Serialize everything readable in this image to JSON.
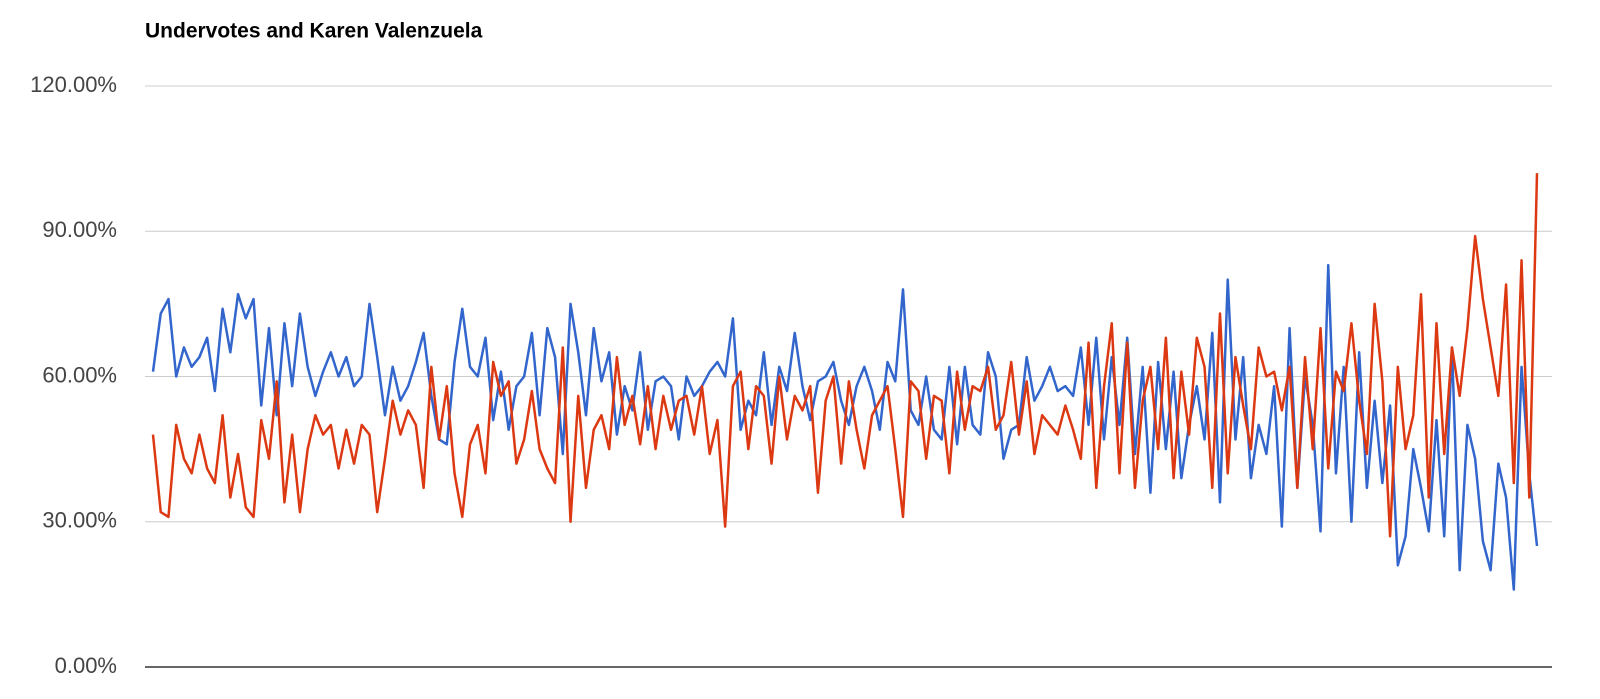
{
  "chart_data": {
    "type": "line",
    "title": "Undervotes and Karen Valenzuela",
    "ylim": [
      0,
      120
    ],
    "yticks": [
      {
        "value": 0,
        "label": "0.00%"
      },
      {
        "value": 30,
        "label": "30.00%"
      },
      {
        "value": 60,
        "label": "60.00%"
      },
      {
        "value": 90,
        "label": "90.00%"
      },
      {
        "value": 120,
        "label": "120.00%"
      }
    ],
    "grid": true,
    "series": [
      {
        "color": "#3366cc",
        "values": [
          61,
          73,
          76,
          60,
          66,
          62,
          64,
          68,
          57,
          74,
          65,
          77,
          72,
          76,
          54,
          70,
          52,
          71,
          58,
          73,
          62,
          56,
          61,
          65,
          60,
          64,
          58,
          60,
          75,
          64,
          52,
          62,
          55,
          58,
          63,
          69,
          56,
          47,
          46,
          63,
          74,
          62,
          60,
          68,
          51,
          61,
          49,
          58,
          60,
          69,
          52,
          70,
          64,
          44,
          75,
          65,
          52,
          70,
          59,
          65,
          48,
          58,
          53,
          65,
          49,
          59,
          60,
          58,
          47,
          60,
          56,
          58,
          61,
          63,
          60,
          72,
          49,
          55,
          52,
          65,
          50,
          62,
          57,
          69,
          58,
          51,
          59,
          60,
          63,
          55,
          50,
          58,
          62,
          57,
          49,
          63,
          59,
          78,
          53,
          50,
          60,
          49,
          47,
          62,
          46,
          62,
          50,
          48,
          65,
          60,
          43,
          49,
          50,
          64,
          55,
          58,
          62,
          57,
          58,
          56,
          66,
          50,
          68,
          47,
          64,
          50,
          68,
          44,
          62,
          36,
          63,
          45,
          61,
          39,
          50,
          58,
          47,
          69,
          34,
          80,
          47,
          64,
          39,
          50,
          44,
          58,
          29,
          70,
          37,
          60,
          50,
          28,
          83,
          40,
          62,
          30,
          65,
          37,
          55,
          38,
          54,
          21,
          27,
          45,
          37,
          28,
          51,
          27,
          66,
          20,
          50,
          43,
          26,
          20,
          42,
          35,
          16,
          62,
          40,
          25
        ]
      },
      {
        "color": "#dc3912",
        "values": [
          48,
          32,
          31,
          50,
          43,
          40,
          48,
          41,
          38,
          52,
          35,
          44,
          33,
          31,
          51,
          43,
          59,
          34,
          48,
          32,
          45,
          52,
          48,
          50,
          41,
          49,
          42,
          50,
          48,
          32,
          43,
          55,
          48,
          53,
          50,
          37,
          62,
          47,
          58,
          40,
          31,
          46,
          50,
          40,
          63,
          56,
          59,
          42,
          47,
          57,
          45,
          41,
          38,
          66,
          30,
          56,
          37,
          49,
          52,
          45,
          64,
          50,
          56,
          46,
          58,
          45,
          56,
          49,
          55,
          56,
          48,
          58,
          44,
          51,
          29,
          58,
          61,
          45,
          58,
          56,
          42,
          60,
          47,
          56,
          53,
          58,
          36,
          55,
          60,
          42,
          59,
          49,
          41,
          52,
          55,
          58,
          45,
          31,
          59,
          57,
          43,
          56,
          55,
          40,
          61,
          49,
          58,
          57,
          62,
          49,
          52,
          63,
          48,
          59,
          44,
          52,
          50,
          48,
          54,
          49,
          43,
          67,
          37,
          58,
          71,
          40,
          67,
          37,
          55,
          62,
          45,
          68,
          39,
          61,
          48,
          68,
          62,
          37,
          73,
          40,
          64,
          54,
          45,
          66,
          60,
          61,
          53,
          62,
          37,
          64,
          45,
          70,
          41,
          61,
          57,
          71,
          55,
          44,
          75,
          59,
          27,
          62,
          45,
          52,
          77,
          35,
          71,
          44,
          66,
          56,
          70,
          89,
          76,
          66,
          56,
          79,
          38,
          84,
          35,
          102
        ]
      }
    ]
  }
}
